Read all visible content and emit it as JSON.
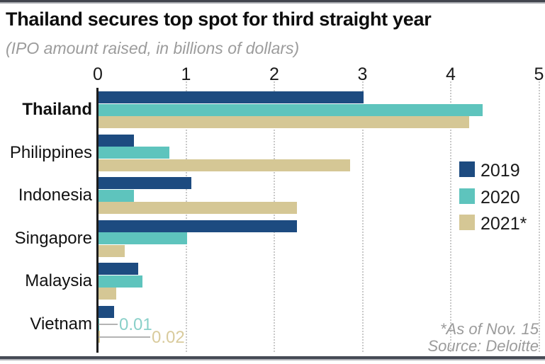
{
  "page": {
    "title": "Thailand secures top spot for third straight year",
    "subtitle": "(IPO amount raised, in billions of dollars)",
    "footnote": "*As of Nov. 15",
    "source": "Source: Deloitte"
  },
  "colors": {
    "series_2019": "#1d4b80",
    "series_2020": "#5ec4bd",
    "series_2021": "#d5c795",
    "axis": "#1c1c1c",
    "gridline": "#c9c9c9",
    "subtitle_gray": "#9c9c9c",
    "annotation_line_gray": "#b4b4b4",
    "frame_dark": "#42454e"
  },
  "chart_data": {
    "type": "bar",
    "orientation": "horizontal",
    "title": "Thailand secures top spot for third straight year",
    "subtitle": "(IPO amount raised, in billions of dollars)",
    "xlabel": "",
    "ylabel": "",
    "xlim": [
      0,
      5
    ],
    "x_ticks": [
      0,
      1,
      2,
      3,
      4,
      5
    ],
    "grid": "dotted-vertical",
    "legend_position": "middle-right",
    "bold_category": "Thailand",
    "categories": [
      "Thailand",
      "Philippines",
      "Indonesia",
      "Singapore",
      "Malaysia",
      "Vietnam"
    ],
    "series": [
      {
        "name": "2019",
        "color": "#1d4b80",
        "values": [
          3.0,
          0.4,
          1.05,
          2.25,
          0.45,
          0.18
        ]
      },
      {
        "name": "2020",
        "color": "#5ec4bd",
        "values": [
          4.35,
          0.8,
          0.4,
          1.0,
          0.5,
          0.01
        ]
      },
      {
        "name": "2021*",
        "color": "#d5c795",
        "values": [
          4.2,
          2.85,
          2.25,
          0.3,
          0.2,
          0.02
        ]
      }
    ],
    "annotations": [
      {
        "category": "Vietnam",
        "series": "2020",
        "label": "0.01",
        "label_color": "#8ad0c9"
      },
      {
        "category": "Vietnam",
        "series": "2021*",
        "label": "0.02",
        "label_color": "#d9cb9d"
      }
    ]
  }
}
